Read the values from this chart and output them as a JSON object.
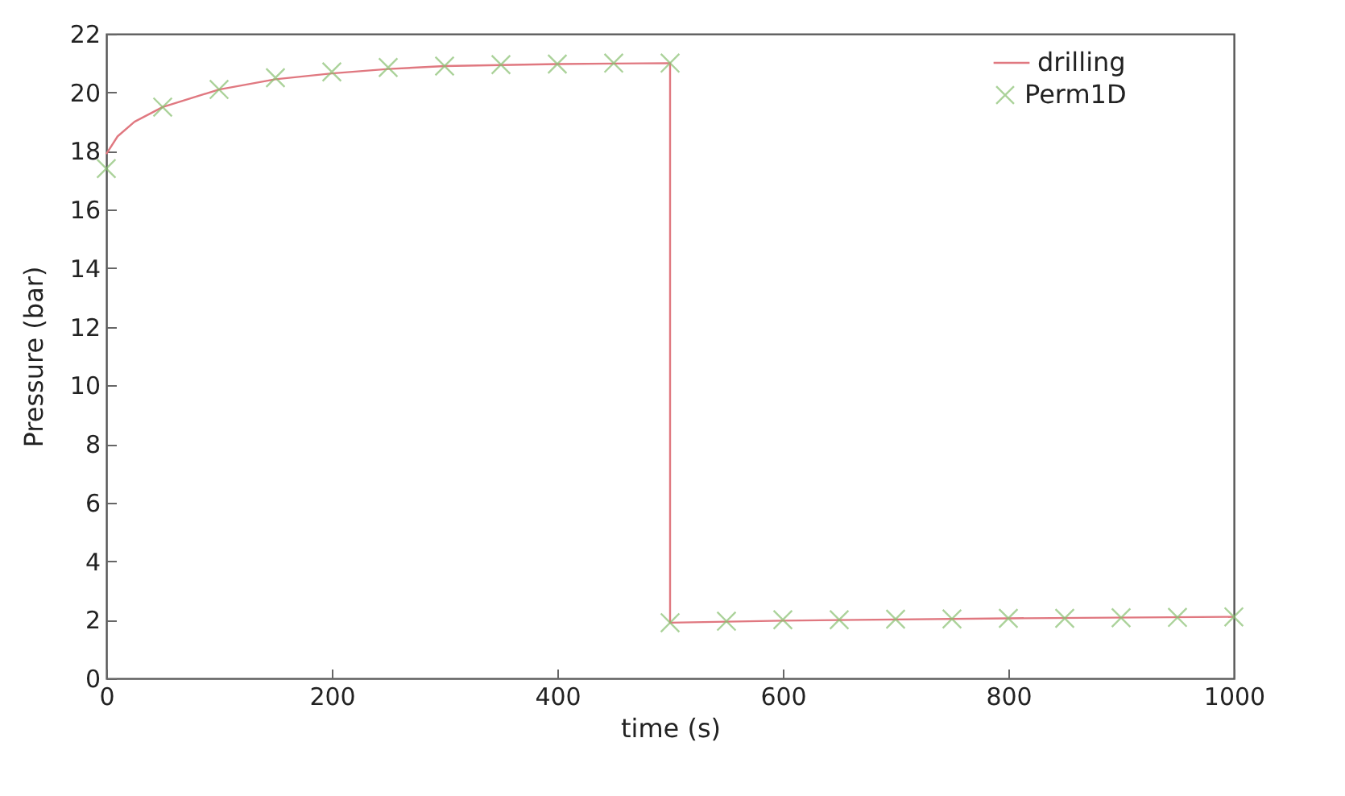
{
  "chart_data": {
    "type": "line",
    "xlabel": "time (s)",
    "ylabel": "Pressure (bar)",
    "xlim": [
      0,
      1000
    ],
    "ylim": [
      0,
      22
    ],
    "xticks": [
      0,
      200,
      400,
      600,
      800,
      1000
    ],
    "yticks": [
      0,
      2,
      4,
      6,
      8,
      10,
      12,
      14,
      16,
      18,
      20,
      22
    ],
    "grid": false,
    "legend": "top right",
    "line_style": "solid",
    "series": [
      {
        "name": "drilling",
        "color": "#e07880",
        "x": [
          0,
          10,
          25,
          50,
          100,
          150,
          200,
          250,
          300,
          400,
          500,
          500,
          600,
          800,
          1000
        ],
        "values": [
          17.9,
          18.5,
          19.0,
          19.5,
          20.1,
          20.45,
          20.65,
          20.8,
          20.9,
          20.97,
          21.0,
          1.9,
          1.97,
          2.05,
          2.1
        ]
      },
      {
        "name": "Perm1D",
        "type": "scatter",
        "marker": "cross",
        "color": "#88c070",
        "x": [
          0,
          50,
          100,
          150,
          200,
          250,
          300,
          350,
          400,
          450,
          500,
          500,
          550,
          600,
          650,
          700,
          750,
          800,
          850,
          900,
          950,
          1000
        ],
        "values": [
          17.4,
          19.5,
          20.1,
          20.5,
          20.7,
          20.85,
          20.9,
          20.95,
          20.97,
          21.0,
          21.0,
          1.9,
          1.95,
          2.0,
          2.0,
          2.02,
          2.03,
          2.05,
          2.05,
          2.07,
          2.08,
          2.1
        ]
      }
    ]
  }
}
